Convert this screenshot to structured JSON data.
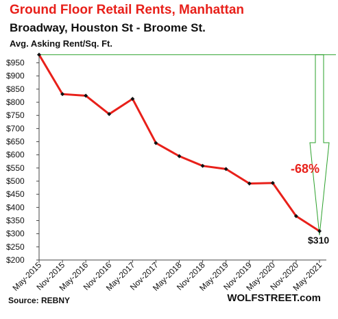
{
  "chart_data": {
    "type": "line",
    "title": "Ground  Floor Retail Rents, Manhattan",
    "subtitle": "Broadway, Houston St - Broome St.",
    "ylabel": "Avg. Asking Rent/Sq. Ft.",
    "categories": [
      "May-2015",
      "Nov-2015",
      "May-2016",
      "Nov-2016",
      "May-2017",
      "Nov-2017",
      "May-2018",
      "Nov-2018",
      "May-2019",
      "Nov-2019",
      "May-2020",
      "Nov-2020",
      "May-2021"
    ],
    "series": [
      {
        "values": [
          981,
          831,
          825,
          755,
          813,
          645,
          595,
          558,
          546,
          491,
          493,
          367,
          310
        ]
      }
    ],
    "ylim": [
      200,
      975
    ],
    "yticks": [
      "$950",
      "$900",
      "$850",
      "$800",
      "$750",
      "$700",
      "$650",
      "$600",
      "$550",
      "$500",
      "$450",
      "$400",
      "$350",
      "$300",
      "$250",
      "$200"
    ],
    "ytick_values": [
      950,
      900,
      850,
      800,
      750,
      700,
      650,
      600,
      550,
      500,
      450,
      400,
      350,
      300,
      250,
      200
    ],
    "grid": false,
    "annotations": {
      "change": "-68%",
      "last_value": "$310"
    },
    "colors": {
      "line": "#e8201a",
      "marker": "#111111",
      "arrow": "#2aa02a",
      "title": "#e8201a"
    }
  },
  "footer": {
    "source": "Source: REBNY",
    "brand": "WOLFSTREET.com"
  }
}
